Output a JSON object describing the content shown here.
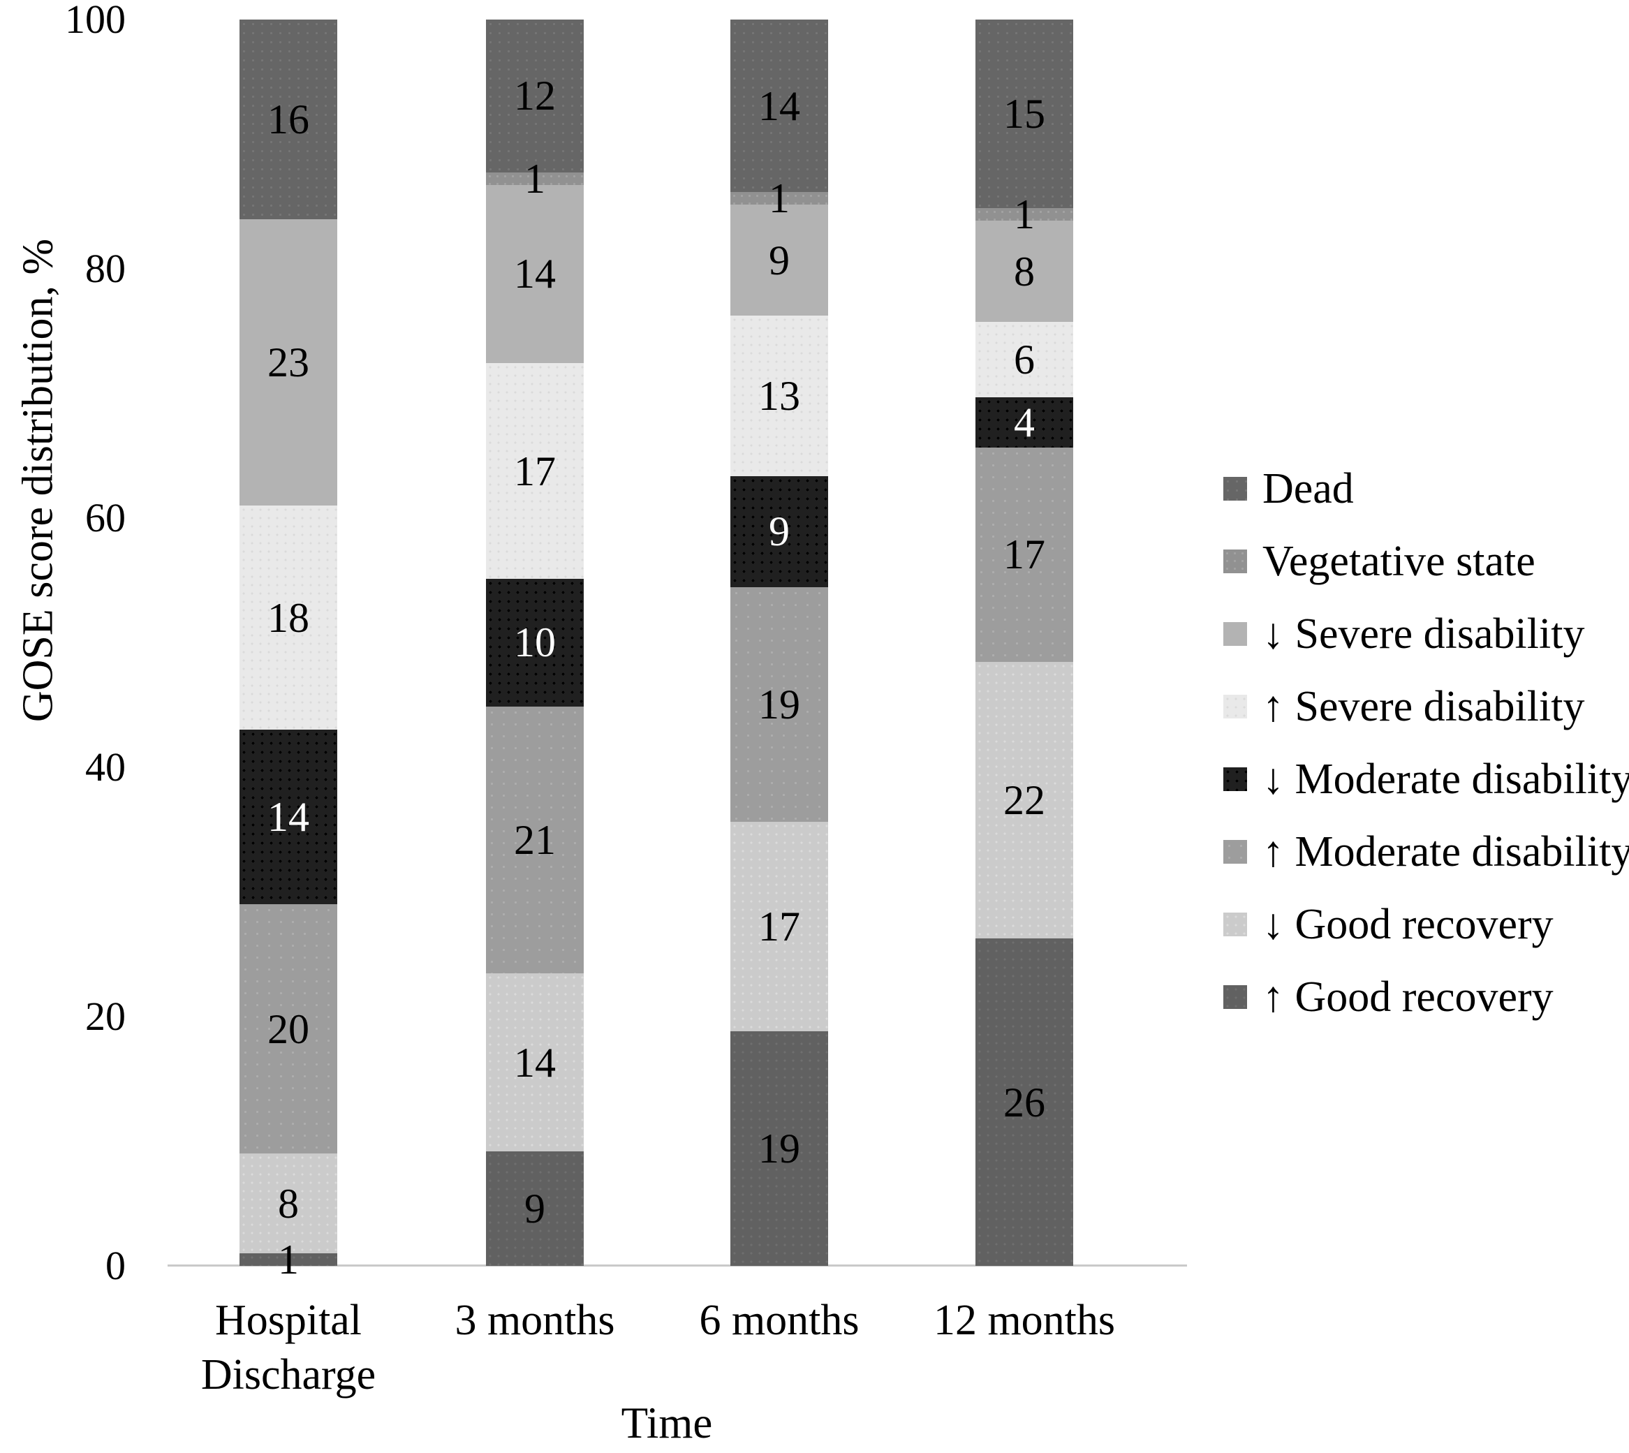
{
  "chart_data": {
    "type": "bar",
    "stacked": true,
    "title": "",
    "xlabel": "Time",
    "ylabel": "GOSE score distribution, %",
    "ylim": [
      0,
      100
    ],
    "yticks": [
      0,
      20,
      40,
      60,
      80,
      100
    ],
    "grid": false,
    "legend_position": "right",
    "categories": [
      "Hospital\nDischarge",
      "3 months",
      "6 months",
      "12 months"
    ],
    "series": [
      {
        "key": "up-good-recovery",
        "name": "↑ Good recovery",
        "color": "#616161",
        "label_color": "#000000",
        "values": [
          1,
          9,
          19,
          26
        ]
      },
      {
        "key": "down-good-recovery",
        "name": "↓ Good recovery",
        "color": "#cbcbcb",
        "label_color": "#000000",
        "values": [
          8,
          14,
          17,
          22
        ]
      },
      {
        "key": "up-moderate-disability",
        "name": "↑ Moderate disability",
        "color": "#9d9d9d",
        "label_color": "#000000",
        "values": [
          20,
          21,
          19,
          17
        ]
      },
      {
        "key": "down-moderate-disability",
        "name": "↓ Moderate disability",
        "color": "#202020",
        "label_color": "#ffffff",
        "values": [
          14,
          10,
          9,
          4
        ]
      },
      {
        "key": "up-severe-disability",
        "name": "↑ Severe disability",
        "color": "#e9e9e9",
        "label_color": "#000000",
        "values": [
          18,
          17,
          13,
          6
        ]
      },
      {
        "key": "down-severe-disability",
        "name": "↓ Severe disability",
        "color": "#b3b3b3",
        "label_color": "#000000",
        "values": [
          23,
          14,
          9,
          8
        ]
      },
      {
        "key": "vegetative-state",
        "name": "Vegetative state",
        "color": "#919191",
        "label_color": "#000000",
        "values": [
          0,
          1,
          1,
          1
        ]
      },
      {
        "key": "dead",
        "name": "Dead",
        "color": "#666666",
        "label_color": "#000000",
        "values": [
          16,
          12,
          14,
          15
        ]
      }
    ],
    "legend_order_top_to_bottom": [
      "dead",
      "vegetative-state",
      "down-severe-disability",
      "up-severe-disability",
      "down-moderate-disability",
      "up-moderate-disability",
      "down-good-recovery",
      "up-good-recovery"
    ]
  }
}
